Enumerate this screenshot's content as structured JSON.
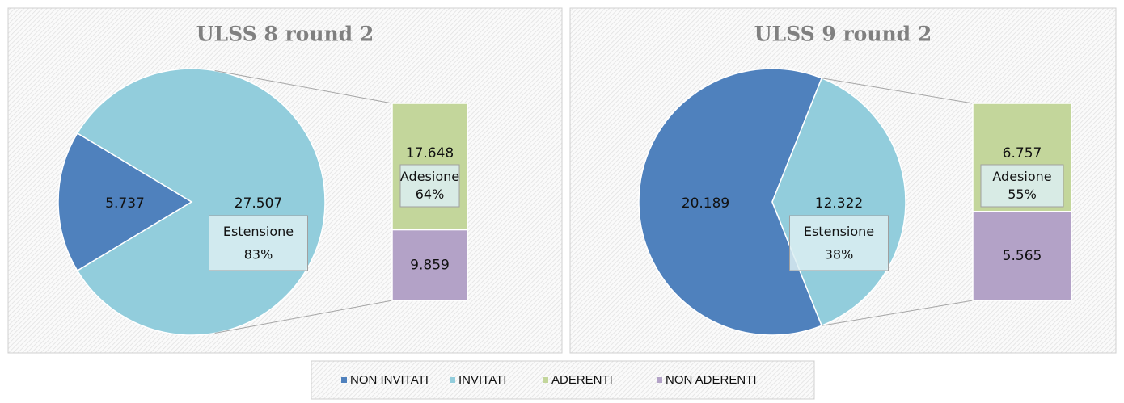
{
  "chart_data": [
    {
      "type": "pie-of-bar",
      "title": "ULSS 8 round 2",
      "categories": [
        "NON INVITATI",
        "INVITATI"
      ],
      "values": [
        5737,
        27507
      ],
      "value_labels": [
        "5.737",
        "27.507"
      ],
      "colors": [
        "#4f81bd",
        "#92cddc"
      ],
      "annotation": [
        "Estensione",
        "83%"
      ],
      "bar": {
        "categories": [
          "ADERENTI",
          "NON ADERENTI"
        ],
        "values": [
          17648,
          9859
        ],
        "value_labels": [
          "17.648",
          "9.859"
        ],
        "colors": [
          "#c3d69b",
          "#b3a2c7"
        ],
        "annotation": [
          "Adesione",
          "64%"
        ]
      }
    },
    {
      "type": "pie-of-bar",
      "title": "ULSS 9 round 2",
      "categories": [
        "NON INVITATI",
        "INVITATI"
      ],
      "values": [
        20189,
        12322
      ],
      "value_labels": [
        "20.189",
        "12.322"
      ],
      "colors": [
        "#4f81bd",
        "#92cddc"
      ],
      "annotation": [
        "Estensione",
        "38%"
      ],
      "bar": {
        "categories": [
          "ADERENTI",
          "NON ADERENTI"
        ],
        "values": [
          6757,
          5565
        ],
        "value_labels": [
          "6.757",
          "5.565"
        ],
        "colors": [
          "#c3d69b",
          "#b3a2c7"
        ],
        "annotation": [
          "Adesione",
          "55%"
        ]
      }
    }
  ],
  "legend_position": "bottom"
}
